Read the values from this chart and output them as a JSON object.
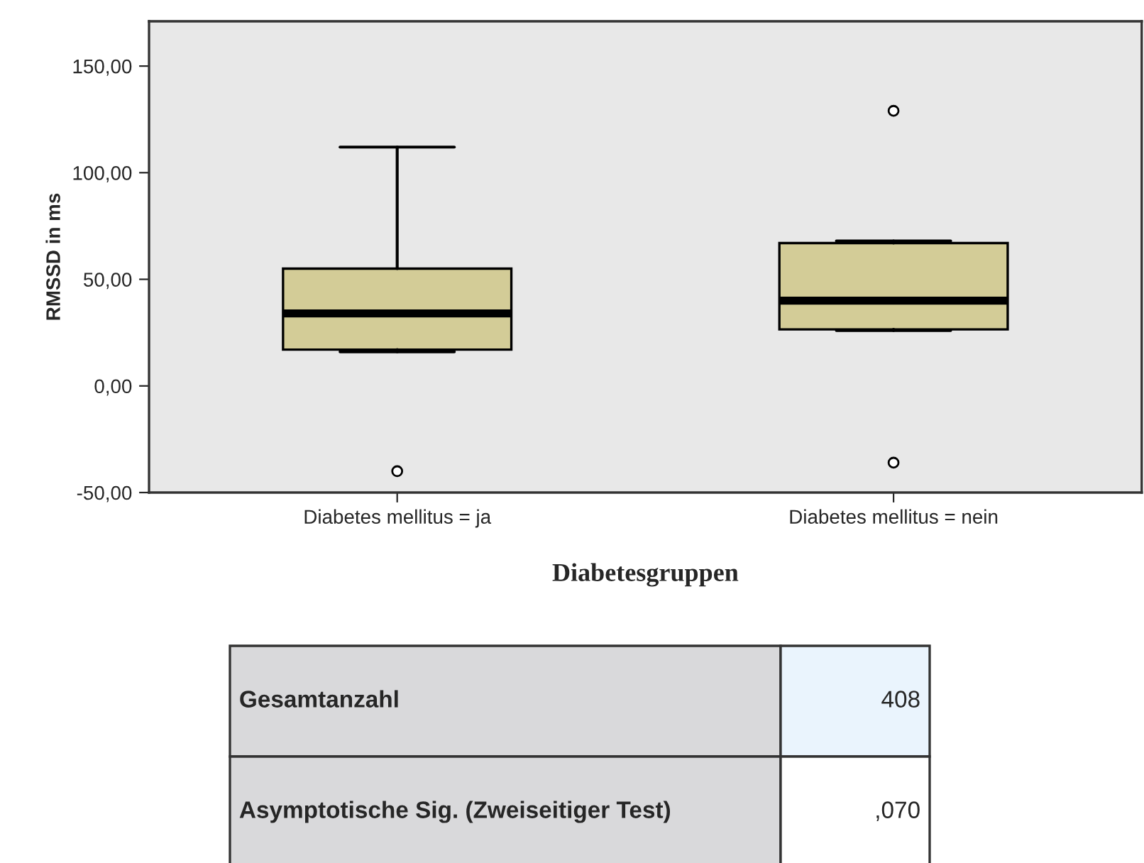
{
  "chart_data": {
    "type": "box",
    "xlabel": "Diabetesgruppen",
    "ylabel": "RMSSD in ms",
    "categories": [
      "Diabetes mellitus = ja",
      "Diabetes mellitus = nein"
    ],
    "boxes": [
      {
        "low": 16,
        "q1": 17,
        "median": 34,
        "q3": 55,
        "high": 112,
        "outliers": [
          -40
        ]
      },
      {
        "low": 26,
        "q1": 26.5,
        "median": 40,
        "q3": 67,
        "high": 68,
        "outliers": [
          129,
          -36
        ]
      }
    ],
    "color": "#d3cc97",
    "ylim": [
      -50,
      171
    ],
    "yticks": [
      {
        "value": -50,
        "label": "-50,00"
      },
      {
        "value": 0,
        "label": "0,00"
      },
      {
        "value": 50,
        "label": "50,00"
      },
      {
        "value": 100,
        "label": "100,00"
      },
      {
        "value": 150,
        "label": "150,00"
      }
    ],
    "grid": false,
    "annotations": [
      "Gesamtanzahl",
      "408",
      "Asymptotische Sig. (Zweiseitiger Test)",
      ",070"
    ]
  }
}
